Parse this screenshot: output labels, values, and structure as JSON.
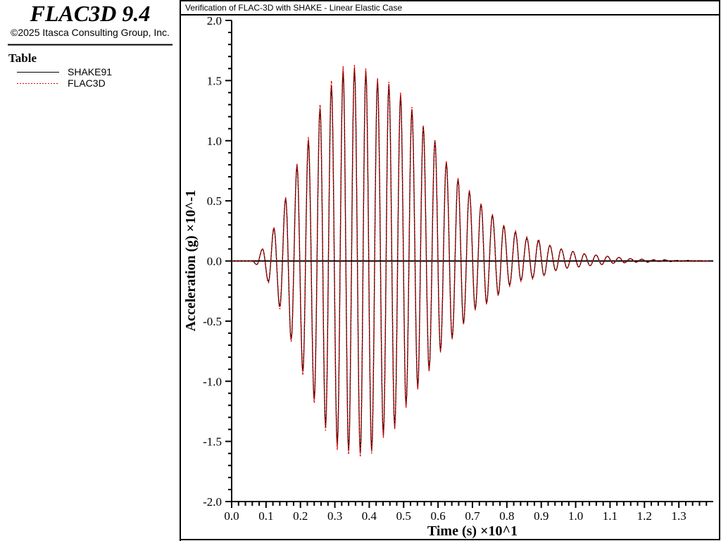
{
  "app": {
    "title": "FLAC3D 9.4",
    "copyright": "©2025 Itasca Consulting Group, Inc."
  },
  "legend": {
    "heading": "Table",
    "items": [
      {
        "label": "SHAKE91",
        "color": "#000000",
        "style": "solid"
      },
      {
        "label": "FLAC3D",
        "color": "#e00000",
        "style": "dashed"
      }
    ]
  },
  "chart_data": {
    "type": "line",
    "title": "Verification of FLAC-3D with SHAKE - Linear Elastic Case",
    "xlabel": "Time (s) ×10^1",
    "ylabel": "Acceleration (g) ×10^-1",
    "xlim": [
      0.0,
      1.4
    ],
    "ylim": [
      -2.0,
      2.0
    ],
    "xticks": [
      "0.0",
      "0.1",
      "0.2",
      "0.3",
      "0.4",
      "0.5",
      "0.6",
      "0.7",
      "0.8",
      "0.9",
      "1.0",
      "1.1",
      "1.2",
      "1.3"
    ],
    "yticks": [
      "2.0",
      "1.5",
      "1.0",
      "0.5",
      "0.0",
      "-0.5",
      "-1.0",
      "-1.5",
      "-2.0"
    ],
    "grid": false,
    "legend_position": "left-panel",
    "x": [
      0.0,
      0.06,
      0.073,
      0.09,
      0.107,
      0.123,
      0.14,
      0.157,
      0.173,
      0.19,
      0.207,
      0.223,
      0.24,
      0.257,
      0.273,
      0.29,
      0.307,
      0.324,
      0.34,
      0.357,
      0.374,
      0.39,
      0.407,
      0.424,
      0.441,
      0.457,
      0.474,
      0.491,
      0.507,
      0.524,
      0.541,
      0.557,
      0.574,
      0.591,
      0.607,
      0.624,
      0.641,
      0.658,
      0.674,
      0.691,
      0.708,
      0.725,
      0.741,
      0.758,
      0.775,
      0.791,
      0.808,
      0.825,
      0.841,
      0.858,
      0.875,
      0.892,
      0.908,
      0.925,
      0.942,
      0.958,
      0.975,
      0.992,
      1.009,
      1.025,
      1.042,
      1.059,
      1.076,
      1.092,
      1.109,
      1.126,
      1.142,
      1.159,
      1.176,
      1.192,
      1.209,
      1.226,
      1.243,
      1.259,
      1.276,
      1.293,
      1.309,
      1.326,
      1.343,
      1.36,
      1.39
    ],
    "series": [
      {
        "name": "SHAKE91",
        "color": "#000000",
        "y": [
          0,
          0,
          -0.03,
          0.1,
          -0.17,
          0.27,
          -0.38,
          0.52,
          -0.65,
          0.79,
          -0.92,
          1.0,
          -1.15,
          1.27,
          -1.38,
          1.46,
          -1.53,
          1.58,
          -1.58,
          1.6,
          -1.6,
          1.58,
          -1.58,
          1.5,
          -1.45,
          1.47,
          -1.38,
          1.38,
          -1.2,
          1.26,
          -1.05,
          1.12,
          -0.9,
          1.0,
          -0.75,
          0.82,
          -0.64,
          0.68,
          -0.52,
          0.58,
          -0.4,
          0.47,
          -0.35,
          0.38,
          -0.28,
          0.29,
          -0.2,
          0.24,
          -0.16,
          0.19,
          -0.14,
          0.17,
          -0.12,
          0.13,
          -0.08,
          0.1,
          -0.06,
          0.08,
          -0.05,
          0.06,
          -0.04,
          0.05,
          -0.03,
          0.04,
          -0.02,
          0.03,
          -0.015,
          0.02,
          -0.01,
          0.015,
          -0.01,
          0.01,
          -0.005,
          0.01,
          -0.005,
          0.005,
          -0.003,
          0.005,
          -0.003,
          0.003,
          0
        ]
      },
      {
        "name": "FLAC3D",
        "color": "#e00000",
        "y": [
          0,
          0,
          -0.03,
          0.1,
          -0.18,
          0.28,
          -0.4,
          0.53,
          -0.67,
          0.81,
          -0.95,
          1.03,
          -1.18,
          1.3,
          -1.41,
          1.5,
          -1.57,
          1.62,
          -1.61,
          1.63,
          -1.63,
          1.6,
          -1.6,
          1.52,
          -1.47,
          1.49,
          -1.4,
          1.4,
          -1.22,
          1.28,
          -1.07,
          1.13,
          -0.92,
          1.01,
          -0.76,
          0.83,
          -0.65,
          0.69,
          -0.53,
          0.59,
          -0.41,
          0.48,
          -0.36,
          0.39,
          -0.29,
          0.3,
          -0.21,
          0.25,
          -0.17,
          0.2,
          -0.15,
          0.18,
          -0.12,
          0.13,
          -0.08,
          0.1,
          -0.06,
          0.08,
          -0.05,
          0.06,
          -0.04,
          0.05,
          -0.03,
          0.04,
          -0.02,
          0.03,
          -0.015,
          0.02,
          -0.01,
          0.015,
          -0.01,
          0.01,
          -0.005,
          0.01,
          -0.005,
          0.005,
          -0.003,
          0.005,
          -0.003,
          0.003,
          0
        ]
      }
    ]
  }
}
